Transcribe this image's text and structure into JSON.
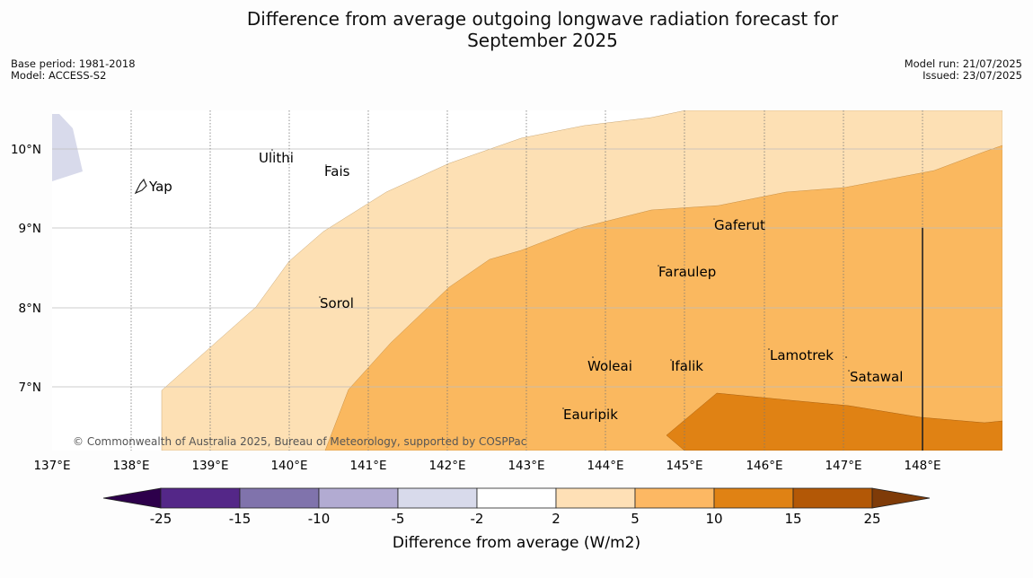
{
  "title": {
    "line1": "Difference from average outgoing longwave radiation forecast for",
    "line2": "September 2025"
  },
  "meta": {
    "base_period": "Base period: 1981-2018",
    "model": "Model: ACCESS-S2",
    "model_run": "Model run: 21/07/2025",
    "issued": "Issued: 23/07/2025"
  },
  "map": {
    "lon_ticks": [
      "137°E",
      "138°E",
      "139°E",
      "140°E",
      "141°E",
      "142°E",
      "143°E",
      "144°E",
      "145°E",
      "146°E",
      "147°E",
      "148°E"
    ],
    "lat_ticks": [
      "10°N",
      "9°N",
      "8°N",
      "7°N"
    ],
    "places": {
      "yap": "Yap",
      "ulithi": "Ulithi",
      "fais": "Fais",
      "gaferut": "Gaferut",
      "faraulep": "Faraulep",
      "sorol": "Sorol",
      "woleai": "Woleai",
      "ifalik": "Ifalik",
      "lamotrek": "Lamotrek",
      "satawal": "Satawal",
      "eauripik": "Eauripik"
    },
    "copyright": "© Commonwealth of Australia 2025, Bureau of Meteorology, supported by COSPPac",
    "category_colors": {
      "2_to_5": "#fde0b4",
      "5_to_10": "#fab85f",
      "10_to_15": "#e08214",
      "neg5_to_neg2": "#d8daeb"
    }
  },
  "colorbar": {
    "labels": [
      "-25",
      "-15",
      "-10",
      "-5",
      "-2",
      "2",
      "5",
      "10",
      "15",
      "25"
    ],
    "colors": [
      "#2d004b",
      "#542788",
      "#8073ac",
      "#b2abd2",
      "#d8daeb",
      "#ffffff",
      "#fee0b6",
      "#fdb863",
      "#e08214",
      "#b35806",
      "#7f3b08"
    ],
    "title": "Difference from average (W/m2)"
  }
}
